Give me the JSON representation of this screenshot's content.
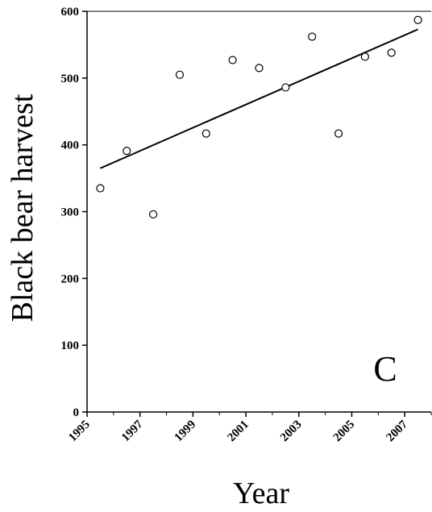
{
  "chart_data": {
    "type": "scatter",
    "title": "",
    "xlabel": "Year",
    "ylabel": "Black bear harvest",
    "panel_label": "C",
    "xlim": [
      1995,
      2008
    ],
    "ylim": [
      0,
      600
    ],
    "x_tick_labels": [
      "1995",
      "1997",
      "1999",
      "2001",
      "2003",
      "2005",
      "2007"
    ],
    "x_tick_values": [
      1995,
      1997,
      1999,
      2001,
      2003,
      2005,
      2007
    ],
    "y_tick_labels": [
      "0",
      "100",
      "200",
      "300",
      "400",
      "500",
      "600"
    ],
    "y_tick_values": [
      0,
      100,
      200,
      300,
      400,
      500,
      600
    ],
    "x_minor_ticks": [
      1996,
      1998,
      2000,
      2002,
      2004,
      2006,
      2008
    ],
    "grid": false,
    "legend": "none",
    "series": [
      {
        "x": [
          1995.5,
          1996.5,
          1997.5,
          1998.5,
          1999.5,
          2000.5,
          2001.5,
          2002.5,
          2003.5,
          2004.5,
          2005.5,
          2006.5,
          2007.5
        ],
        "y": [
          335,
          391,
          296,
          505,
          417,
          527,
          515,
          486,
          562,
          417,
          532,
          538,
          587
        ]
      }
    ],
    "trend_line": {
      "x": [
        1995.5,
        2007.5
      ],
      "y": [
        365,
        573
      ]
    },
    "colors": {
      "axis": "#000000",
      "marker_stroke": "#000000",
      "marker_fill": "#ffffff",
      "line": "#000000"
    }
  }
}
